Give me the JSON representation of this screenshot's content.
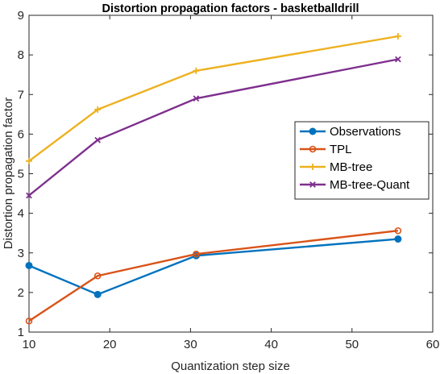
{
  "chart_data": {
    "type": "line",
    "title": "Distortion propagation factors - basketballdrill",
    "xlabel": "Quantization step size",
    "ylabel": "Distortion propagation factor",
    "xlim": [
      10,
      60
    ],
    "ylim": [
      1,
      9
    ],
    "xticks": [
      10,
      20,
      30,
      40,
      50,
      60
    ],
    "yticks": [
      1,
      2,
      3,
      4,
      5,
      6,
      7,
      8,
      9
    ],
    "grid": false,
    "legend_position": "center-right",
    "series": [
      {
        "name": "Observations",
        "color": "#0072BD",
        "marker": "circle",
        "x": [
          10,
          18.5,
          30.7,
          55.7
        ],
        "y": [
          2.68,
          1.95,
          2.93,
          3.35
        ]
      },
      {
        "name": "TPL",
        "color": "#D95319",
        "marker": "circle-open",
        "x": [
          10,
          18.5,
          30.7,
          55.7
        ],
        "y": [
          1.28,
          2.42,
          2.97,
          3.56
        ]
      },
      {
        "name": "MB-tree",
        "color": "#EDB120",
        "marker": "plus",
        "x": [
          10,
          18.5,
          30.7,
          55.7
        ],
        "y": [
          5.32,
          6.62,
          7.6,
          8.47
        ]
      },
      {
        "name": "MB-tree-Quant",
        "color": "#7E2F8E",
        "marker": "x",
        "x": [
          10,
          18.5,
          30.7,
          55.7
        ],
        "y": [
          4.45,
          5.85,
          6.9,
          7.89
        ]
      }
    ]
  }
}
